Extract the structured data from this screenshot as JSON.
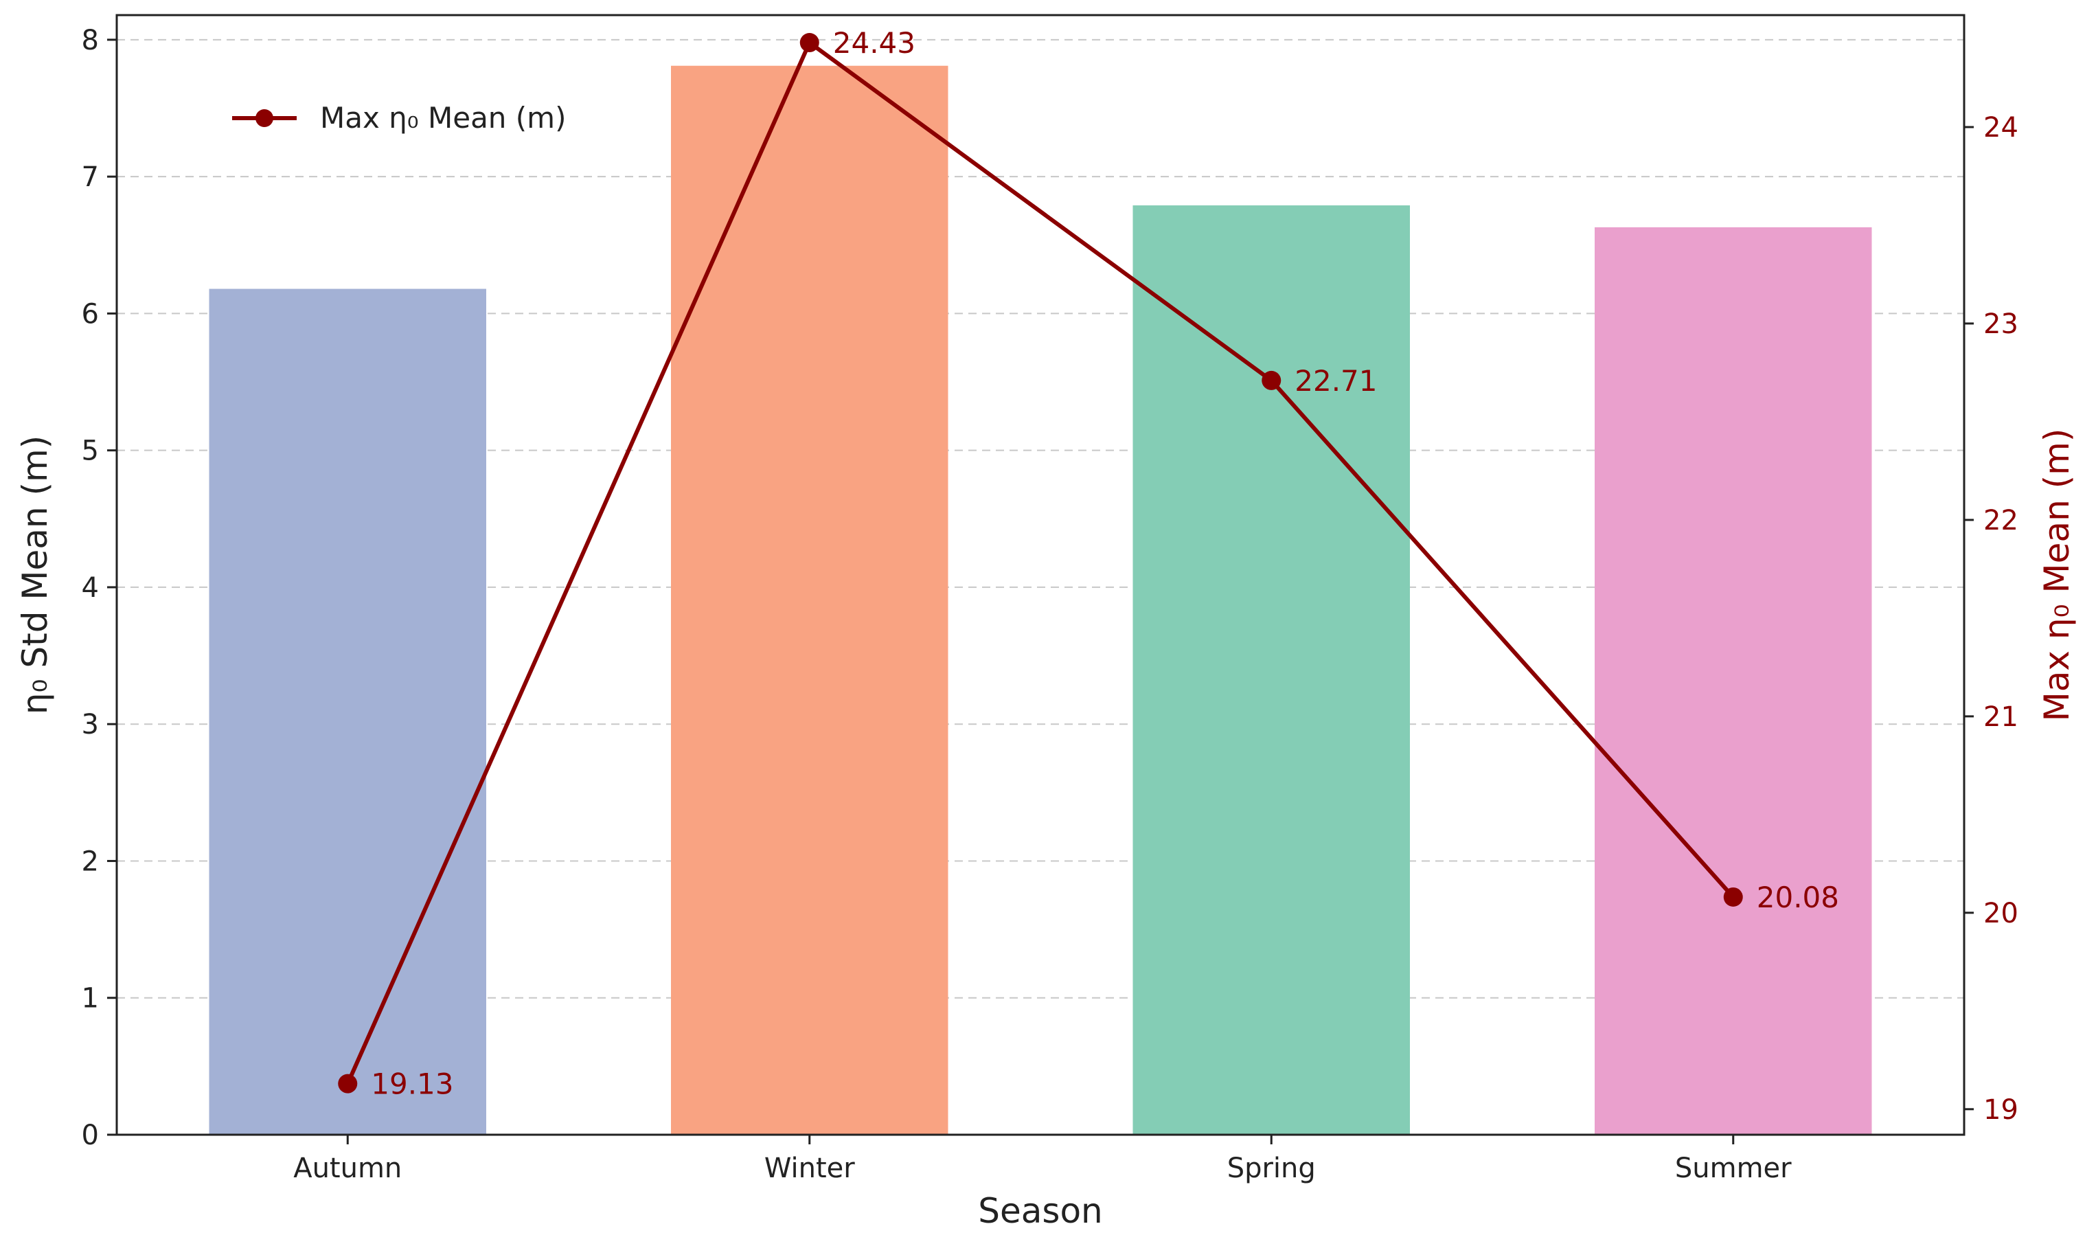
{
  "chart_data": {
    "type": "bar",
    "categories": [
      "Autumn",
      "Winter",
      "Spring",
      "Summer"
    ],
    "series": [
      {
        "name": "",
        "type": "bar",
        "axis": "left",
        "values": [
          6.18,
          7.81,
          6.79,
          6.63
        ],
        "colors": [
          "#a3b1d5",
          "#f9a382",
          "#84cdb5",
          "#eaa0cd"
        ]
      },
      {
        "name": "Max η₀ Mean (m)",
        "type": "line",
        "axis": "right",
        "values": [
          19.13,
          24.43,
          22.71,
          20.08
        ],
        "data_labels": [
          "19.13",
          "24.43",
          "22.71",
          "20.08"
        ],
        "color": "#8b0000"
      }
    ],
    "xlabel": "Season",
    "ylabel": "η₀ Std Mean (m)",
    "y2label": "Max η₀ Mean (m)",
    "ylim": [
      0,
      8.18
    ],
    "y2lim": [
      18.87,
      24.57
    ],
    "yticks": [
      0,
      1,
      2,
      3,
      4,
      5,
      6,
      7,
      8
    ],
    "y2ticks": [
      19,
      20,
      21,
      22,
      23,
      24
    ],
    "grid": "horizontal dashed",
    "legend_position": "top-left"
  }
}
